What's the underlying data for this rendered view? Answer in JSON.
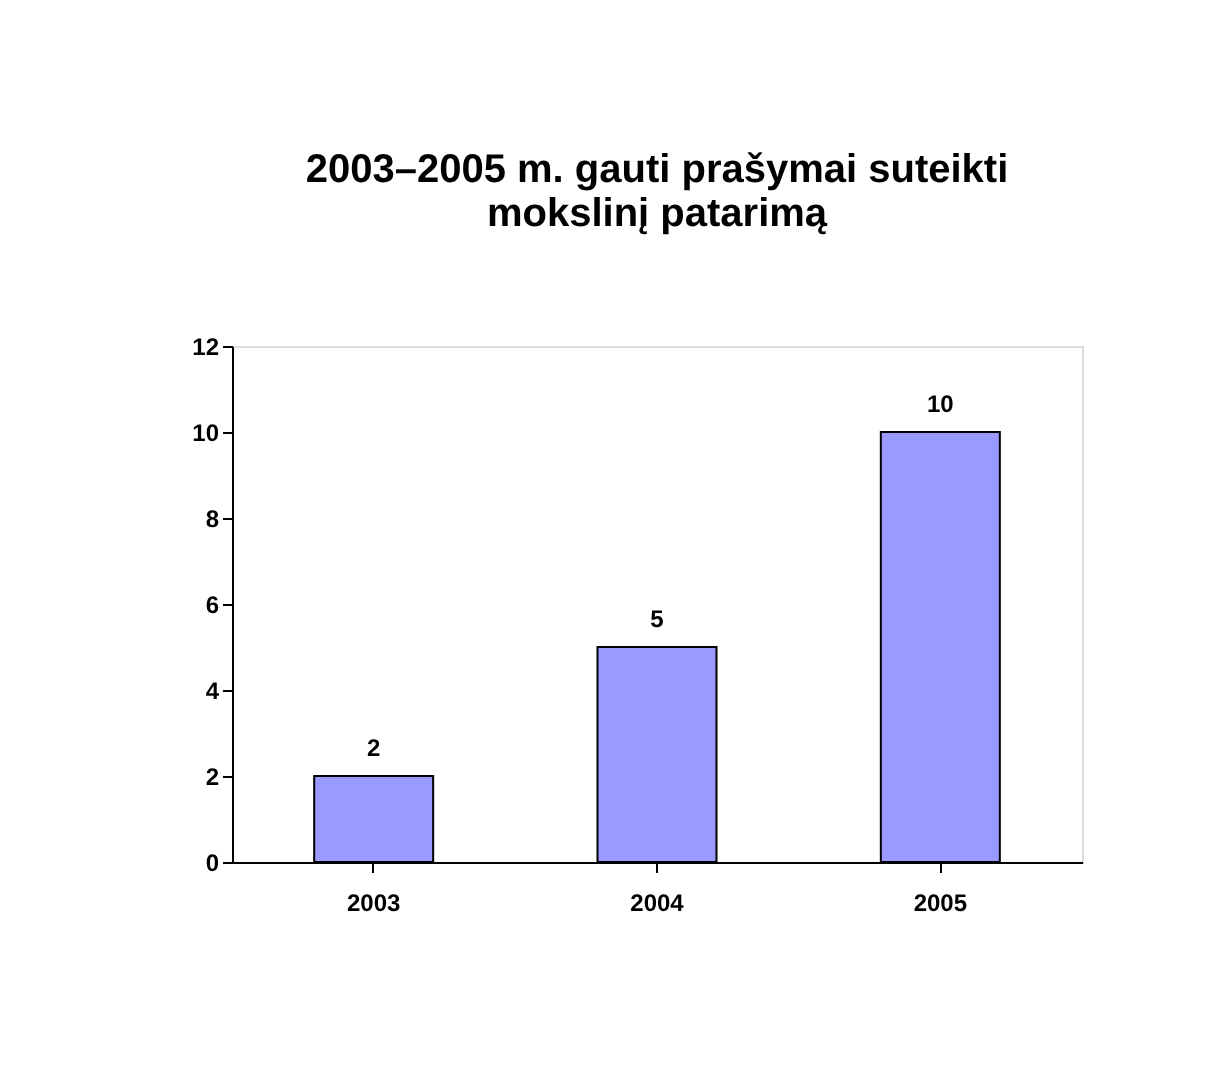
{
  "chart_data": {
    "type": "bar",
    "title": [
      "2003–2005 m. gauti prašymai suteikti",
      "mokslinį patarimą"
    ],
    "categories": [
      "2003",
      "2004",
      "2005"
    ],
    "series": [
      {
        "color": "#9999ff",
        "values": [
          2,
          5,
          10
        ]
      }
    ],
    "ylim": [
      0,
      12
    ],
    "yticks": [
      0,
      2,
      4,
      6,
      8,
      10,
      12
    ],
    "grid": false,
    "data_labels": true,
    "legend": false
  }
}
